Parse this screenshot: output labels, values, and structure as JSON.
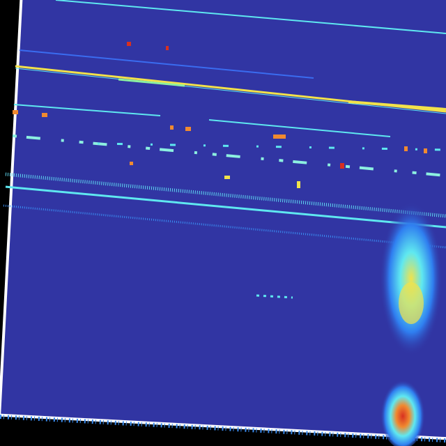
{
  "colors": {
    "background": "#000000",
    "frame_border": "#ffffff",
    "field": "#3135a3",
    "cyan": "#5fe8f0",
    "light_blue": "#3a8cf0",
    "yellow": "#f2e24a",
    "orange": "#f08a30",
    "red": "#d83020",
    "green": "#8cf0a0"
  },
  "image": {
    "type": "rotated spectrogram heatmap",
    "rotation_deg": 3
  }
}
